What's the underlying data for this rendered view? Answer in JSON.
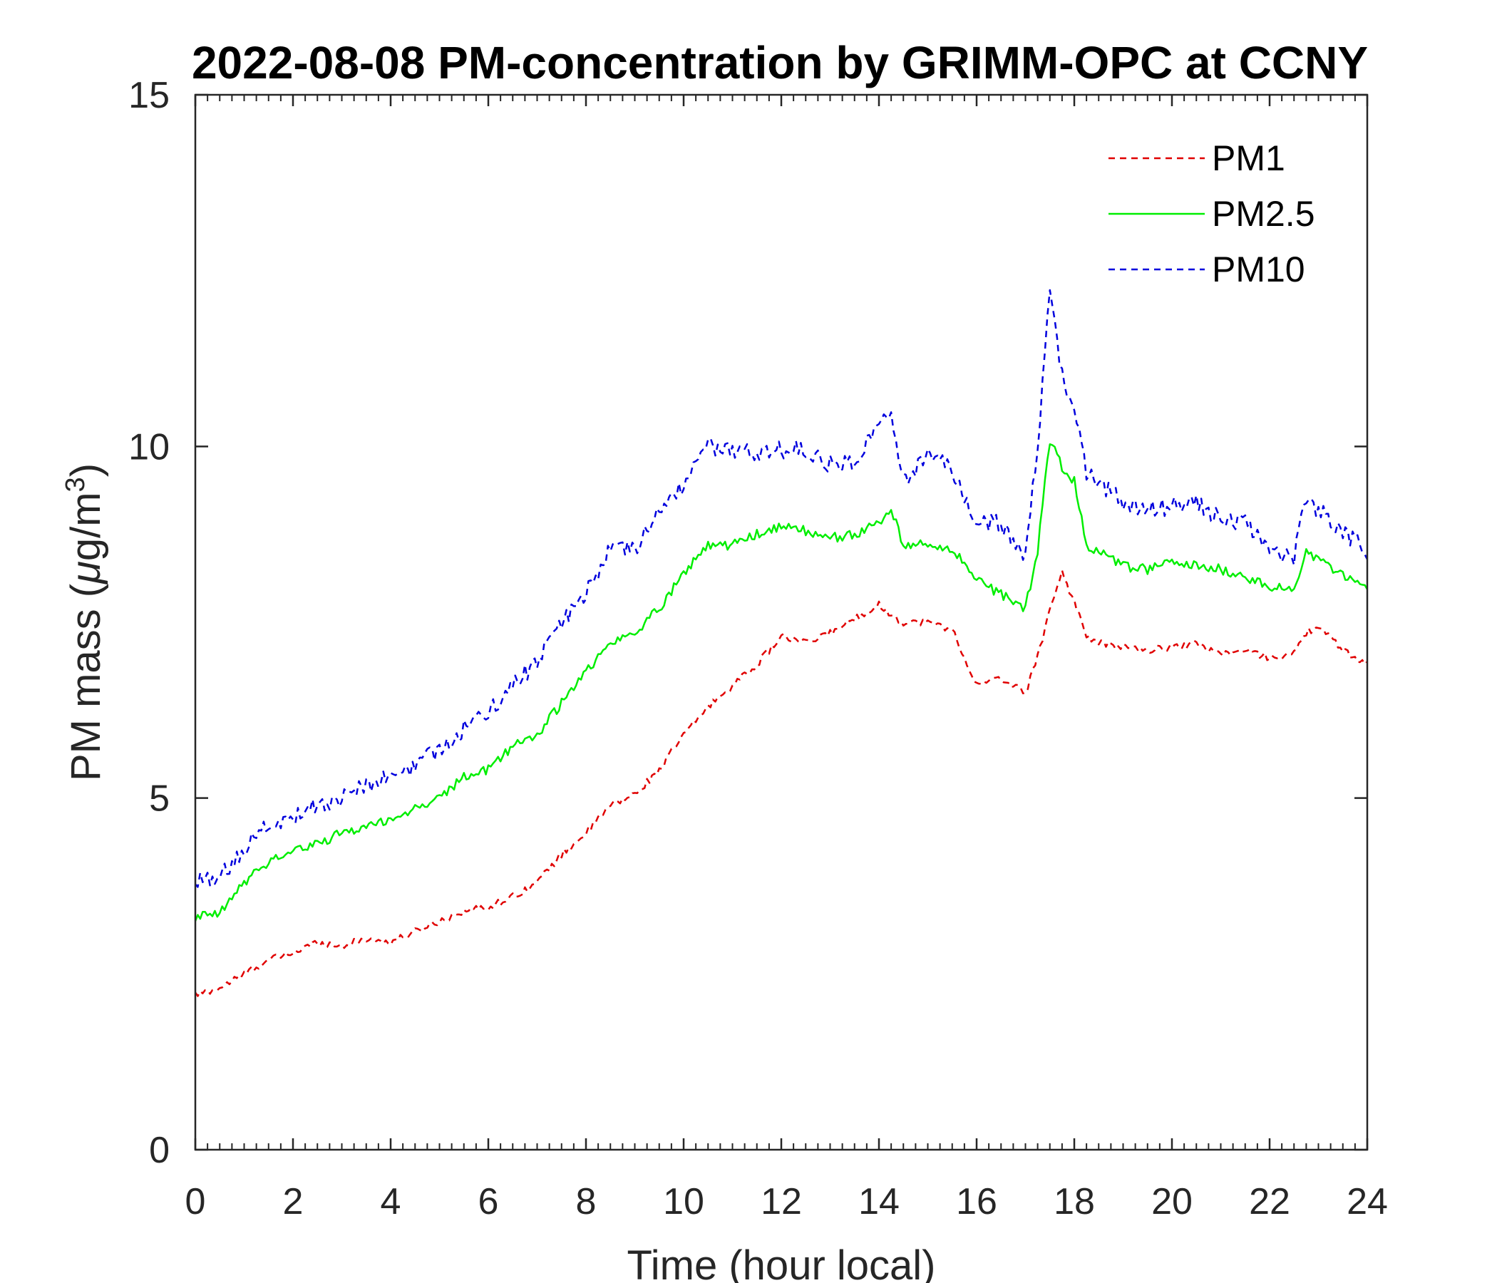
{
  "chart_data": {
    "type": "line",
    "title": "2022-08-08 PM-concentration by GRIMM-OPC at CCNY",
    "xlabel": "Time (hour local)",
    "ylabel_prefix": "PM mass (",
    "ylabel_mu": "μ",
    "ylabel_unit": "g/m",
    "ylabel_sup": "3",
    "ylabel_suffix": ")",
    "xlim": [
      0,
      24
    ],
    "ylim": [
      0,
      15
    ],
    "xticks": [
      0,
      2,
      4,
      6,
      8,
      10,
      12,
      14,
      16,
      18,
      20,
      22,
      24
    ],
    "xtick_labels": [
      "0",
      "2",
      "4",
      "6",
      "8",
      "10",
      "12",
      "14",
      "16",
      "18",
      "20",
      "22",
      "24"
    ],
    "yticks": [
      0,
      5,
      10,
      15
    ],
    "ytick_labels": [
      "0",
      "5",
      "10",
      "15"
    ],
    "legend_position": "top-right",
    "x": [
      0,
      0.5,
      1,
      1.5,
      2,
      2.5,
      3,
      3.5,
      4,
      4.5,
      5,
      5.5,
      6,
      6.5,
      7,
      7.5,
      8,
      8.5,
      9,
      9.5,
      10,
      10.5,
      11,
      11.5,
      12,
      12.5,
      13,
      13.5,
      14,
      14.25,
      14.5,
      15,
      15.5,
      16,
      16.5,
      17,
      17.25,
      17.5,
      17.75,
      18,
      18.25,
      18.5,
      19,
      19.5,
      20,
      20.5,
      21,
      21.5,
      22,
      22.5,
      22.75,
      23,
      23.5,
      24
    ],
    "series": [
      {
        "name": "PM1",
        "color": "#e00000",
        "dash": "dashed",
        "values": [
          2.2,
          2.3,
          2.5,
          2.7,
          2.8,
          2.95,
          2.9,
          3.0,
          2.95,
          3.1,
          3.25,
          3.4,
          3.45,
          3.6,
          3.8,
          4.2,
          4.5,
          4.9,
          5.05,
          5.4,
          5.9,
          6.3,
          6.6,
          6.9,
          7.3,
          7.2,
          7.35,
          7.55,
          7.75,
          7.6,
          7.5,
          7.5,
          7.4,
          6.6,
          6.7,
          6.5,
          7.0,
          7.7,
          8.2,
          7.8,
          7.3,
          7.2,
          7.15,
          7.1,
          7.15,
          7.2,
          7.05,
          7.1,
          7.0,
          7.05,
          7.35,
          7.45,
          7.1,
          6.9
        ]
      },
      {
        "name": "PM2.5",
        "color": "#00ee00",
        "dash": "solid",
        "values": [
          3.3,
          3.35,
          3.8,
          4.1,
          4.25,
          4.35,
          4.5,
          4.6,
          4.7,
          4.85,
          5.0,
          5.3,
          5.4,
          5.75,
          5.9,
          6.35,
          6.8,
          7.2,
          7.35,
          7.7,
          8.2,
          8.6,
          8.6,
          8.75,
          8.85,
          8.8,
          8.7,
          8.75,
          8.9,
          9.1,
          8.6,
          8.6,
          8.55,
          8.1,
          7.9,
          7.7,
          8.5,
          10.1,
          9.7,
          9.5,
          8.6,
          8.5,
          8.3,
          8.25,
          8.35,
          8.3,
          8.25,
          8.15,
          8.0,
          7.95,
          8.5,
          8.4,
          8.15,
          7.95
        ]
      },
      {
        "name": "PM10",
        "color": "#0000dd",
        "dash": "dashed",
        "values": [
          3.8,
          3.85,
          4.3,
          4.6,
          4.75,
          4.9,
          5.0,
          5.2,
          5.3,
          5.45,
          5.7,
          6.0,
          6.2,
          6.6,
          6.95,
          7.5,
          7.9,
          8.55,
          8.5,
          9.1,
          9.45,
          10.0,
          9.95,
          9.9,
          9.95,
          9.95,
          9.75,
          9.8,
          10.3,
          10.45,
          9.5,
          9.9,
          9.65,
          8.9,
          8.9,
          8.4,
          10.0,
          12.2,
          11.0,
          10.6,
          9.6,
          9.5,
          9.2,
          9.1,
          9.15,
          9.2,
          8.95,
          8.9,
          8.55,
          8.4,
          9.3,
          9.1,
          8.8,
          8.5
        ]
      }
    ]
  }
}
